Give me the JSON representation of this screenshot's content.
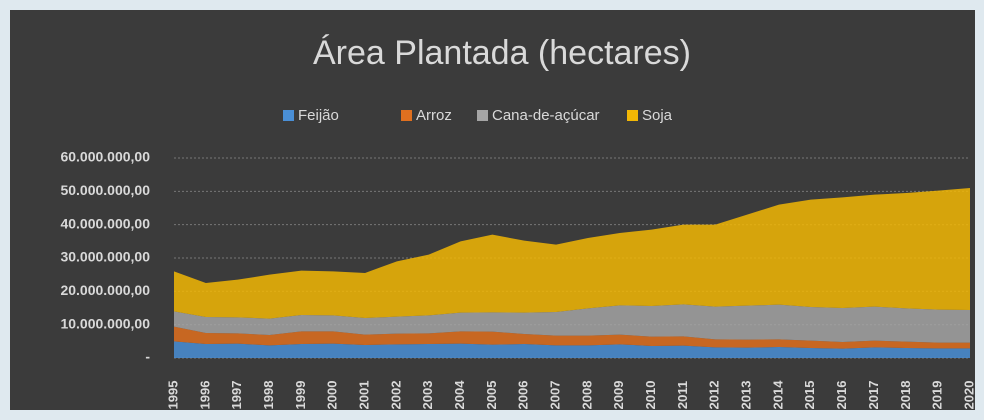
{
  "chart_data": {
    "type": "stacked-area",
    "title": "Área Plantada (hectares)",
    "categories": [
      "1995",
      "1996",
      "1997",
      "1998",
      "1999",
      "2000",
      "2001",
      "2002",
      "2003",
      "2004",
      "2005",
      "2006",
      "2007",
      "2008",
      "2009",
      "2010",
      "2011",
      "2012",
      "2013",
      "2014",
      "2015",
      "2016",
      "2017",
      "2018",
      "2019",
      "2020"
    ],
    "series": [
      {
        "name": "Feijão",
        "color": "#4a8fd6",
        "values": [
          5000000,
          4200000,
          4300000,
          3800000,
          4200000,
          4300000,
          3900000,
          4100000,
          4200000,
          4300000,
          4000000,
          4200000,
          3800000,
          3800000,
          4100000,
          3600000,
          3700000,
          3200000,
          3100000,
          3300000,
          3000000,
          2800000,
          3200000,
          3000000,
          2900000,
          2900000
        ]
      },
      {
        "name": "Arroz",
        "color": "#e0701f",
        "values": [
          4400000,
          3300000,
          3100000,
          3100000,
          3800000,
          3700000,
          3100000,
          3200000,
          3200000,
          3700000,
          3900000,
          3000000,
          2900000,
          2900000,
          2900000,
          2800000,
          2800000,
          2400000,
          2400000,
          2300000,
          2200000,
          2000000,
          2000000,
          1900000,
          1700000,
          1700000
        ]
      },
      {
        "name": "Cana-de-açúcar",
        "color": "#a5a5a5",
        "values": [
          4600000,
          4800000,
          4800000,
          4900000,
          4900000,
          4800000,
          5000000,
          5100000,
          5400000,
          5600000,
          5800000,
          6400000,
          7100000,
          8200000,
          8800000,
          9200000,
          9600000,
          9800000,
          10200000,
          10400000,
          10100000,
          10200000,
          10200000,
          10000000,
          9900000,
          9800000
        ]
      },
      {
        "name": "Soja",
        "color": "#f2b705",
        "values": [
          12000000,
          10200000,
          11300000,
          13200000,
          13300000,
          13200000,
          13500000,
          16600000,
          18200000,
          21400000,
          23300000,
          21600000,
          20200000,
          21100000,
          21700000,
          22900000,
          23900000,
          24600000,
          27300000,
          30000000,
          32200000,
          33200000,
          33600000,
          34600000,
          35700000,
          36600000
        ]
      }
    ],
    "ylim": [
      0,
      60000000
    ],
    "yticks": [
      {
        "value": 0,
        "label": "-"
      },
      {
        "value": 10000000,
        "label": "10.000.000,00"
      },
      {
        "value": 20000000,
        "label": "20.000.000,00"
      },
      {
        "value": 30000000,
        "label": "30.000.000,00"
      },
      {
        "value": 40000000,
        "label": "40.000.000,00"
      },
      {
        "value": 50000000,
        "label": "50.000.000,00"
      },
      {
        "value": 60000000,
        "label": "60.000.000,00"
      }
    ],
    "grid": true,
    "legend": "top"
  }
}
